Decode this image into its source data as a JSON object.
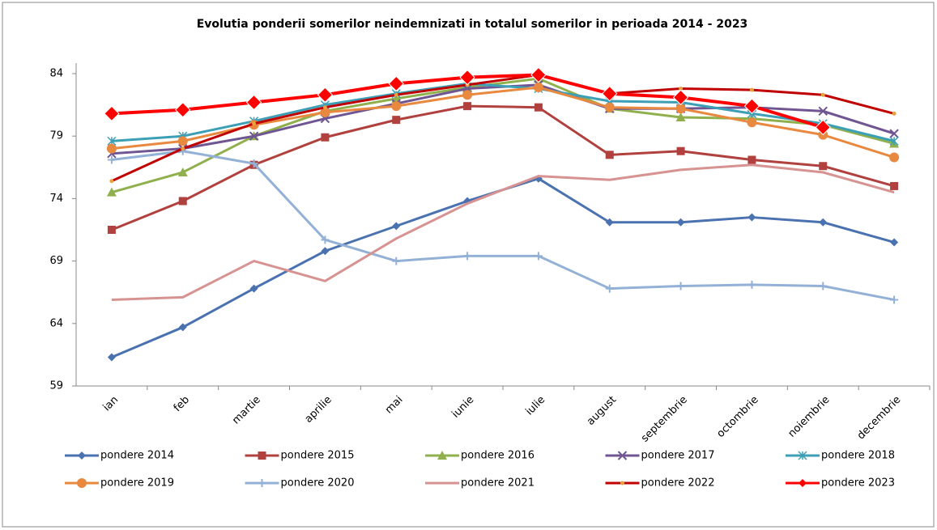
{
  "chart_data": {
    "type": "line",
    "title": "Evolutia ponderii somerilor neindemnizati in totalul somerilor in perioada 2014 -  2023",
    "categories": [
      "ian",
      "feb",
      "martie",
      "aprilie",
      "mai",
      "iunie",
      "iulie",
      "august",
      "septembrie",
      "octombrie",
      "noiembrie",
      "decembrie"
    ],
    "ylim": [
      59,
      84
    ],
    "yticks": [
      59,
      64,
      69,
      74,
      79,
      84
    ],
    "grid": false,
    "legend": "bottom",
    "series": [
      {
        "name": "pondere 2014",
        "color": "#4a72b0",
        "marker": "diamond",
        "values": [
          61.3,
          63.7,
          66.8,
          69.8,
          71.8,
          73.8,
          75.6,
          72.1,
          72.1,
          72.5,
          72.1,
          70.5
        ]
      },
      {
        "name": "pondere 2015",
        "color": "#b0413e",
        "marker": "square",
        "values": [
          71.5,
          73.8,
          76.7,
          78.9,
          80.3,
          81.4,
          81.3,
          77.5,
          77.8,
          77.1,
          76.6,
          75.0
        ]
      },
      {
        "name": "pondere 2016",
        "color": "#8fb04d",
        "marker": "triangle",
        "values": [
          74.5,
          76.1,
          79.0,
          81.0,
          82.0,
          82.9,
          83.6,
          81.2,
          80.5,
          80.4,
          79.9,
          78.4
        ]
      },
      {
        "name": "pondere 2017",
        "color": "#6f5592",
        "marker": "x",
        "values": [
          77.6,
          78.0,
          79.0,
          80.4,
          81.6,
          82.8,
          83.1,
          81.2,
          81.2,
          81.3,
          81.0,
          79.2
        ]
      },
      {
        "name": "pondere 2018",
        "color": "#3d9fb5",
        "marker": "star",
        "values": [
          78.6,
          79.0,
          80.2,
          81.5,
          82.4,
          83.2,
          82.8,
          81.8,
          81.7,
          80.8,
          80.0,
          78.6
        ]
      },
      {
        "name": "pondere 2019",
        "color": "#e8893f",
        "marker": "circle",
        "values": [
          78.0,
          78.6,
          79.9,
          80.9,
          81.4,
          82.3,
          82.9,
          81.3,
          81.2,
          80.1,
          79.1,
          77.3
        ]
      },
      {
        "name": "pondere 2020",
        "color": "#93b1d6",
        "marker": "plus",
        "values": [
          77.1,
          77.8,
          76.8,
          70.7,
          69.0,
          69.4,
          69.4,
          66.8,
          67.0,
          67.1,
          67.0,
          65.9
        ]
      },
      {
        "name": "pondere 2021",
        "color": "#d69391",
        "marker": "none",
        "values": [
          65.9,
          66.1,
          69.0,
          67.4,
          70.8,
          73.6,
          75.8,
          75.5,
          76.3,
          76.7,
          76.1,
          74.5
        ]
      },
      {
        "name": "pondere 2022",
        "color": "#c00000",
        "marker": "dot",
        "values": [
          75.4,
          78.0,
          80.0,
          81.3,
          82.3,
          83.1,
          83.9,
          82.4,
          82.8,
          82.7,
          82.3,
          80.8
        ]
      },
      {
        "name": "pondere 2023",
        "color": "#ff0000",
        "marker": "bigdiamond",
        "values": [
          80.8,
          81.1,
          81.7,
          82.3,
          83.2,
          83.7,
          83.9,
          82.4,
          82.1,
          81.4,
          79.7,
          null
        ]
      }
    ]
  }
}
